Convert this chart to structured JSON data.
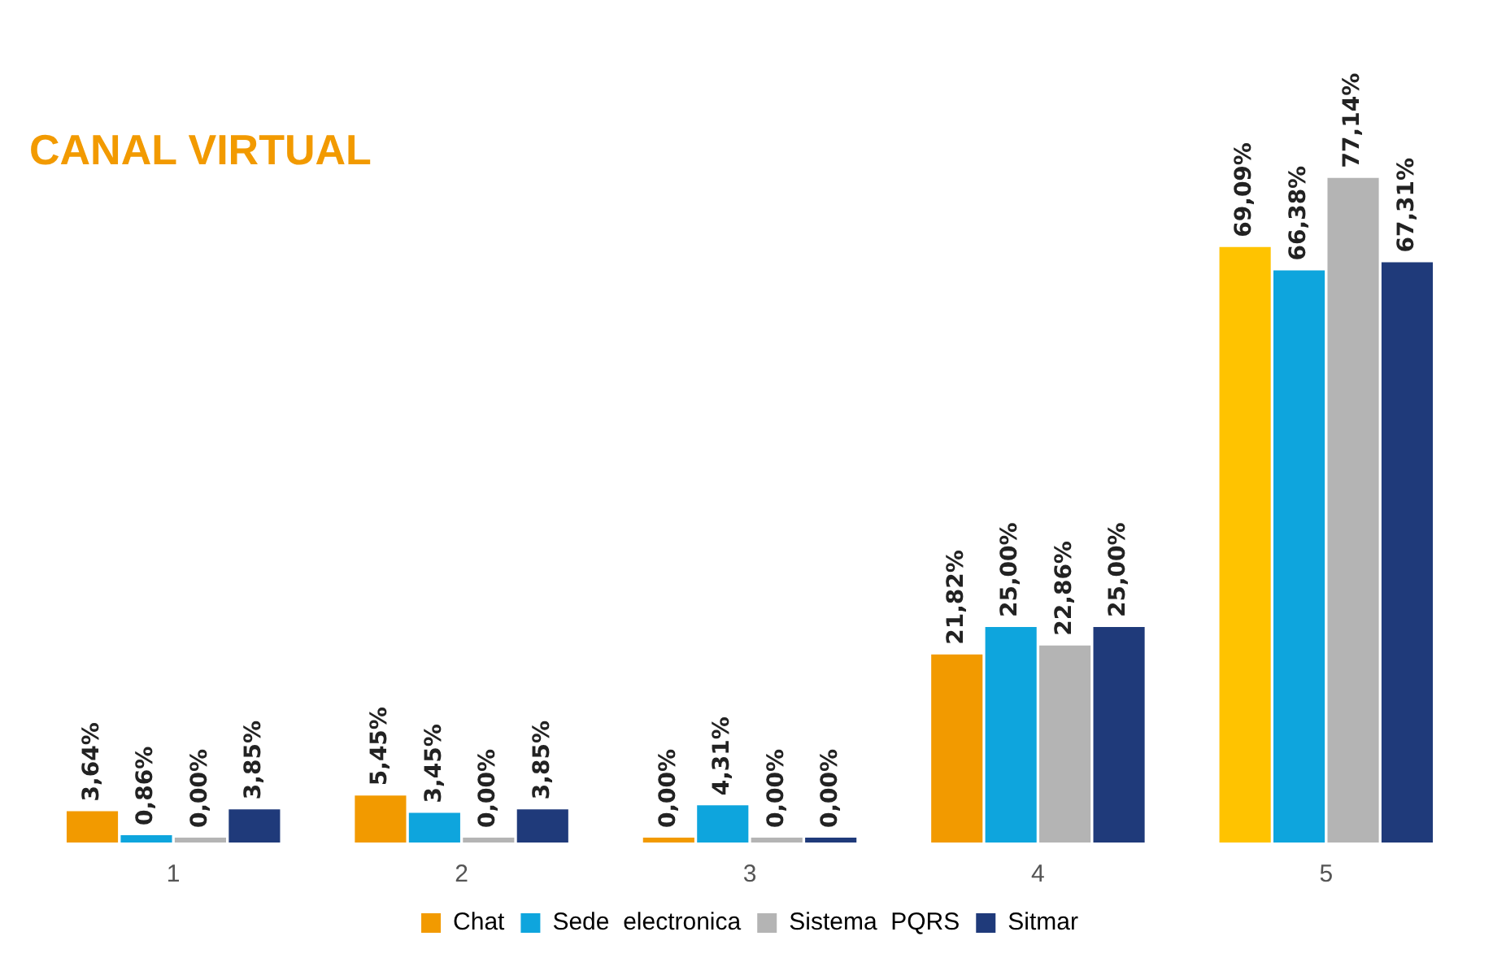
{
  "chart_data": {
    "type": "bar",
    "title": "CANAL VIRTUAL",
    "categories": [
      "1",
      "2",
      "3",
      "4",
      "5"
    ],
    "series": [
      {
        "name": "Chat",
        "color": "#f29a00",
        "colors": [
          "#f29a00",
          "#f29a00",
          "#f29a00",
          "#f29a00",
          "#ffc300"
        ],
        "values": [
          3.64,
          5.45,
          0,
          21.82,
          69.09
        ],
        "value_labels": [
          "3,64%",
          "5,45%",
          "0,00%",
          "21,82%",
          "69,09%"
        ]
      },
      {
        "name": "Sede  electronica",
        "color": "#0ea5dd",
        "values": [
          0.86,
          3.45,
          4.31,
          25,
          66.38
        ],
        "value_labels": [
          "0,86%",
          "3,45%",
          "4,31%",
          "25,00%",
          "66,38%"
        ]
      },
      {
        "name": "Sistema  PQRS",
        "color": "#b4b4b4",
        "values": [
          0,
          0,
          0,
          22.86,
          77.14
        ],
        "value_labels": [
          "0,00%",
          "0,00%",
          "0,00%",
          "22,86%",
          "77,14%"
        ]
      },
      {
        "name": "Sitmar",
        "color": "#1f3a7a",
        "values": [
          3.85,
          3.85,
          0,
          25,
          67.31
        ],
        "value_labels": [
          "3,85%",
          "3,85%",
          "0,00%",
          "25,00%",
          "67,31%"
        ]
      }
    ],
    "tick_labels": "x",
    "grid": false,
    "legend": "bottom"
  }
}
